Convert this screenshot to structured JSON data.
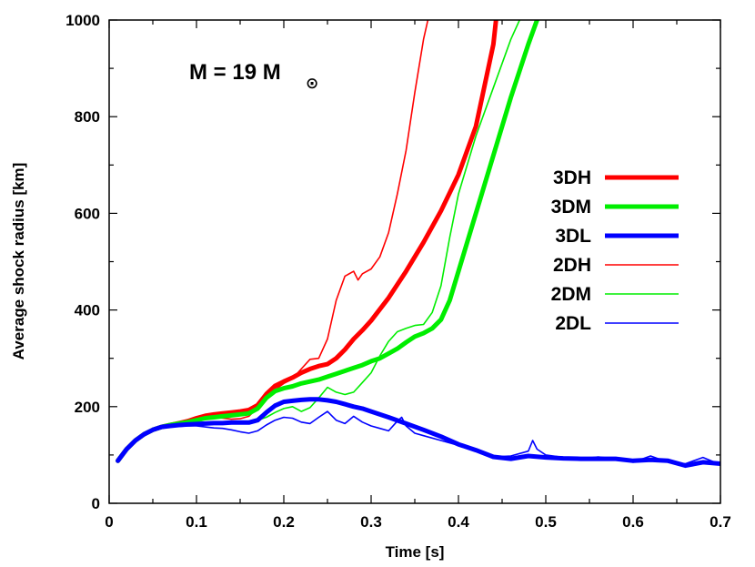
{
  "chart_data": {
    "type": "line",
    "xlabel": "Time [s]",
    "ylabel": "Average shock radius [km]",
    "xlim": [
      0,
      0.7
    ],
    "ylim": [
      0,
      1000
    ],
    "xticks": [
      0,
      0.1,
      0.2,
      0.3,
      0.4,
      0.5,
      0.6,
      0.7
    ],
    "yticks": [
      0,
      200,
      400,
      600,
      800,
      1000
    ],
    "xtick_labels": [
      "0",
      "0.1",
      "0.2",
      "0.3",
      "0.4",
      "0.5",
      "0.6",
      "0.7"
    ],
    "ytick_labels": [
      "0",
      "200",
      "400",
      "600",
      "800",
      "1000"
    ],
    "grid": false,
    "legend_position": "right",
    "annotation": {
      "text": "M = 19 M",
      "symbol": "⊙"
    },
    "series": [
      {
        "name": "3DH",
        "color": "#ff0000",
        "line_weight": "thick",
        "x": [
          0.01,
          0.02,
          0.03,
          0.04,
          0.05,
          0.06,
          0.07,
          0.08,
          0.09,
          0.1,
          0.11,
          0.12,
          0.13,
          0.14,
          0.15,
          0.16,
          0.17,
          0.18,
          0.19,
          0.2,
          0.21,
          0.22,
          0.23,
          0.24,
          0.25,
          0.26,
          0.27,
          0.28,
          0.29,
          0.3,
          0.32,
          0.34,
          0.36,
          0.38,
          0.4,
          0.42,
          0.44,
          0.443
        ],
        "y": [
          88,
          112,
          130,
          143,
          152,
          158,
          162,
          166,
          170,
          176,
          181,
          184,
          186,
          188,
          190,
          193,
          203,
          226,
          243,
          252,
          260,
          270,
          278,
          284,
          288,
          300,
          318,
          340,
          358,
          378,
          425,
          480,
          540,
          605,
          680,
          780,
          950,
          1000
        ]
      },
      {
        "name": "3DM",
        "color": "#00ee00",
        "line_weight": "thick",
        "x": [
          0.01,
          0.02,
          0.03,
          0.04,
          0.05,
          0.06,
          0.07,
          0.08,
          0.09,
          0.1,
          0.11,
          0.12,
          0.13,
          0.14,
          0.15,
          0.16,
          0.17,
          0.18,
          0.19,
          0.2,
          0.21,
          0.22,
          0.23,
          0.24,
          0.25,
          0.26,
          0.27,
          0.28,
          0.29,
          0.3,
          0.31,
          0.32,
          0.33,
          0.34,
          0.35,
          0.36,
          0.37,
          0.38,
          0.39,
          0.4,
          0.42,
          0.44,
          0.46,
          0.48,
          0.49
        ],
        "y": [
          88,
          112,
          130,
          143,
          152,
          158,
          162,
          165,
          168,
          172,
          176,
          178,
          180,
          182,
          184,
          186,
          196,
          218,
          232,
          238,
          242,
          248,
          252,
          256,
          262,
          268,
          274,
          280,
          286,
          294,
          300,
          310,
          320,
          333,
          345,
          352,
          362,
          380,
          420,
          480,
          600,
          720,
          840,
          950,
          1000
        ]
      },
      {
        "name": "3DL",
        "color": "#0000ff",
        "line_weight": "thick",
        "x": [
          0.01,
          0.02,
          0.03,
          0.04,
          0.05,
          0.06,
          0.07,
          0.08,
          0.09,
          0.1,
          0.11,
          0.12,
          0.13,
          0.14,
          0.15,
          0.16,
          0.17,
          0.18,
          0.19,
          0.2,
          0.21,
          0.22,
          0.23,
          0.24,
          0.25,
          0.26,
          0.27,
          0.28,
          0.29,
          0.3,
          0.32,
          0.34,
          0.36,
          0.38,
          0.4,
          0.42,
          0.44,
          0.46,
          0.48,
          0.5,
          0.52,
          0.54,
          0.56,
          0.58,
          0.6,
          0.62,
          0.64,
          0.66,
          0.68,
          0.7
        ],
        "y": [
          88,
          112,
          130,
          143,
          152,
          158,
          160,
          162,
          163,
          164,
          165,
          166,
          166,
          167,
          167,
          167,
          172,
          188,
          202,
          210,
          212,
          214,
          215,
          215,
          213,
          210,
          205,
          200,
          196,
          190,
          178,
          165,
          152,
          138,
          122,
          110,
          96,
          92,
          98,
          95,
          93,
          92,
          92,
          92,
          88,
          90,
          88,
          78,
          85,
          82
        ]
      },
      {
        "name": "2DH",
        "color": "#ff0000",
        "line_weight": "thin",
        "x": [
          0.01,
          0.03,
          0.05,
          0.07,
          0.09,
          0.1,
          0.11,
          0.12,
          0.13,
          0.14,
          0.15,
          0.16,
          0.17,
          0.18,
          0.19,
          0.2,
          0.21,
          0.22,
          0.23,
          0.24,
          0.25,
          0.26,
          0.27,
          0.28,
          0.285,
          0.29,
          0.3,
          0.31,
          0.32,
          0.33,
          0.34,
          0.35,
          0.36,
          0.365
        ],
        "y": [
          88,
          130,
          152,
          162,
          170,
          175,
          178,
          178,
          176,
          174,
          175,
          180,
          198,
          220,
          235,
          248,
          258,
          278,
          298,
          300,
          340,
          420,
          470,
          480,
          462,
          475,
          485,
          510,
          560,
          640,
          730,
          850,
          960,
          1000
        ]
      },
      {
        "name": "2DM",
        "color": "#00ee00",
        "line_weight": "thin",
        "x": [
          0.01,
          0.03,
          0.05,
          0.07,
          0.09,
          0.1,
          0.11,
          0.12,
          0.13,
          0.14,
          0.15,
          0.16,
          0.17,
          0.18,
          0.19,
          0.2,
          0.21,
          0.22,
          0.23,
          0.24,
          0.25,
          0.26,
          0.27,
          0.28,
          0.29,
          0.3,
          0.31,
          0.32,
          0.33,
          0.34,
          0.35,
          0.36,
          0.37,
          0.38,
          0.39,
          0.4,
          0.42,
          0.44,
          0.46,
          0.47
        ],
        "y": [
          88,
          130,
          152,
          160,
          165,
          166,
          165,
          164,
          164,
          165,
          166,
          170,
          172,
          178,
          188,
          196,
          200,
          190,
          198,
          218,
          240,
          230,
          225,
          230,
          250,
          270,
          305,
          335,
          355,
          362,
          368,
          370,
          395,
          450,
          550,
          640,
          760,
          860,
          960,
          1000
        ]
      },
      {
        "name": "2DL",
        "color": "#0000ff",
        "line_weight": "thin",
        "x": [
          0.01,
          0.03,
          0.05,
          0.07,
          0.09,
          0.1,
          0.11,
          0.12,
          0.13,
          0.14,
          0.15,
          0.16,
          0.17,
          0.18,
          0.19,
          0.2,
          0.21,
          0.22,
          0.23,
          0.24,
          0.25,
          0.26,
          0.27,
          0.28,
          0.29,
          0.3,
          0.31,
          0.32,
          0.33,
          0.335,
          0.34,
          0.35,
          0.36,
          0.38,
          0.4,
          0.42,
          0.44,
          0.46,
          0.48,
          0.485,
          0.49,
          0.5,
          0.52,
          0.54,
          0.56,
          0.58,
          0.6,
          0.62,
          0.64,
          0.66,
          0.68,
          0.7
        ],
        "y": [
          88,
          130,
          152,
          158,
          160,
          160,
          158,
          156,
          155,
          152,
          148,
          145,
          150,
          162,
          172,
          178,
          176,
          168,
          165,
          178,
          190,
          172,
          165,
          180,
          168,
          160,
          155,
          150,
          170,
          178,
          160,
          145,
          140,
          130,
          120,
          108,
          96,
          98,
          108,
          130,
          112,
          100,
          95,
          92,
          96,
          92,
          85,
          98,
          85,
          82,
          95,
          80
        ]
      }
    ]
  }
}
